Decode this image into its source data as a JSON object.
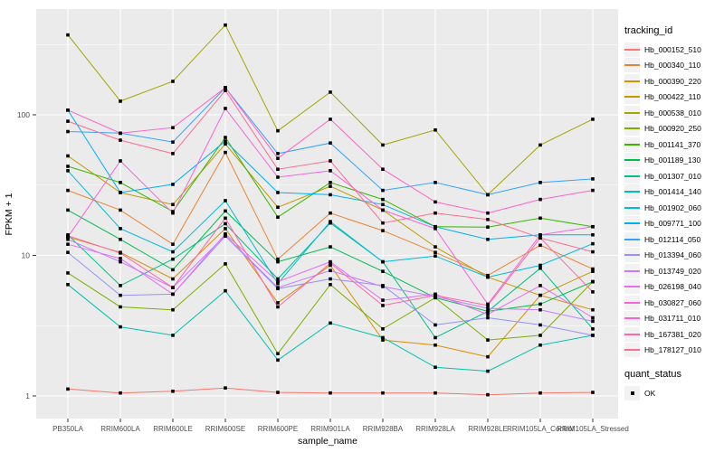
{
  "figure": {
    "panel_bg": "#EBEBEB",
    "grid_color": "#FFFFFF",
    "legend_key_bg": "#F2F2F2",
    "marker_color": "#000000",
    "axis_text_color": "#4D4D4D",
    "axis_title_color": "#000000"
  },
  "legend": {
    "tracking_title": "tracking_id",
    "quant_title": "quant_status",
    "quant_items": [
      {
        "label": "OK",
        "marker": "black-square"
      }
    ]
  },
  "chart_data": {
    "type": "line",
    "title": "",
    "xlabel": "sample_name",
    "ylabel": "FPKM + 1",
    "y_scale": "log10",
    "ylim": [
      0.69,
      563
    ],
    "y_ticks": [
      1,
      10,
      100
    ],
    "y_minor_ticks": [
      3.162,
      31.62,
      316.2
    ],
    "grid": true,
    "legend_position": "right",
    "marker": "square",
    "categories": [
      "PB350LA",
      "RRIM600LA",
      "RRIM600LE",
      "RRIM600SE",
      "RRIM600PE",
      "RRIM901LA",
      "RRIM928BA",
      "RRIM928LA",
      "RRIM928LE",
      "RRIM105LA_Control",
      "RRIM105LA_Stressed"
    ],
    "series": [
      {
        "name": "Hb_000152_510",
        "color": "#F8766D",
        "values": [
          1.12,
          1.05,
          1.08,
          1.14,
          1.06,
          1.05,
          1.05,
          1.05,
          1.02,
          1.05,
          1.06
        ]
      },
      {
        "name": "Hb_000340_110",
        "color": "#EA8331",
        "values": [
          29,
          21,
          12,
          54,
          9.4,
          20,
          15,
          10.5,
          7.2,
          11.8,
          8
        ]
      },
      {
        "name": "Hb_000390_220",
        "color": "#D89000",
        "values": [
          13.5,
          10.5,
          6.8,
          15.5,
          4.6,
          8.5,
          2.5,
          2.3,
          1.9,
          5.2,
          4.1
        ]
      },
      {
        "name": "Hb_000422_110",
        "color": "#C09B00",
        "values": [
          51,
          28,
          23,
          62,
          22,
          31,
          21,
          11.5,
          7,
          5.2,
          7.7
        ]
      },
      {
        "name": "Hb_000538_010",
        "color": "#A3A500",
        "values": [
          370,
          125,
          173,
          435,
          77,
          145,
          61,
          78,
          27,
          61,
          93
        ]
      },
      {
        "name": "Hb_000920_250",
        "color": "#7CAE00",
        "values": [
          7.5,
          4.3,
          4.1,
          8.7,
          2,
          6.2,
          3,
          5,
          2.5,
          2.7,
          6.5
        ]
      },
      {
        "name": "Hb_001141_370",
        "color": "#39B600",
        "values": [
          43,
          33,
          20.5,
          69,
          18.7,
          33,
          25,
          16,
          15.9,
          18.4,
          16
        ]
      },
      {
        "name": "Hb_001189_130",
        "color": "#00BB4E",
        "values": [
          21,
          13,
          7.9,
          20.7,
          9,
          11.5,
          7.7,
          5,
          4,
          4.5,
          6.5
        ]
      },
      {
        "name": "Hb_001307_010",
        "color": "#00C087",
        "values": [
          14,
          6.1,
          9.4,
          16.8,
          6.8,
          17,
          9,
          2.6,
          4,
          8.1,
          3
        ]
      },
      {
        "name": "Hb_001414_140",
        "color": "#00C0AF",
        "values": [
          6.2,
          3.1,
          2.7,
          5.6,
          1.8,
          3.3,
          2.6,
          1.6,
          1.5,
          2.3,
          2.7
        ]
      },
      {
        "name": "Hb_001902_060",
        "color": "#00BCD8",
        "values": [
          40,
          15.5,
          10.6,
          24.5,
          6.3,
          17.4,
          9,
          9.9,
          7,
          8.5,
          12.1
        ]
      },
      {
        "name": "Hb_009771_100",
        "color": "#00B0F6",
        "values": [
          108,
          28,
          32,
          65,
          28,
          27,
          23,
          16,
          13,
          14,
          14
        ]
      },
      {
        "name": "Hb_012114_050",
        "color": "#35A2FF",
        "values": [
          76,
          74,
          64,
          156,
          53,
          63,
          29,
          33,
          27,
          33,
          35
        ]
      },
      {
        "name": "Hb_013394_060",
        "color": "#9590FF",
        "values": [
          10.5,
          5.2,
          5.3,
          13.7,
          5.8,
          6.8,
          6.1,
          3.2,
          3.6,
          3.2,
          2.7
        ]
      },
      {
        "name": "Hb_013749_020",
        "color": "#C77CFF",
        "values": [
          13,
          9,
          5.9,
          13.9,
          5.9,
          7.8,
          6,
          5.1,
          4.2,
          4.1,
          3.4
        ]
      },
      {
        "name": "Hb_026198_040",
        "color": "#E76BF3",
        "values": [
          12,
          9.5,
          5.3,
          14.2,
          6.5,
          9,
          4.8,
          5.3,
          3.8,
          6.1,
          3.6
        ]
      },
      {
        "name": "Hb_030827_060",
        "color": "#FA62DB",
        "values": [
          13.5,
          47,
          20,
          111,
          36,
          40,
          21,
          15.5,
          4.5,
          14,
          16
        ]
      },
      {
        "name": "Hb_031711_010",
        "color": "#FF61C9",
        "values": [
          108,
          74,
          81,
          156,
          49,
          93,
          41,
          24,
          20,
          25,
          29
        ]
      },
      {
        "name": "Hb_167381_020",
        "color": "#FF67A4",
        "values": [
          13.8,
          10.4,
          5.9,
          18.4,
          4.3,
          8.8,
          4.4,
          5.2,
          4.4,
          13.3,
          5.5
        ]
      },
      {
        "name": "Hb_178127_010",
        "color": "#FF6C91",
        "values": [
          90,
          66,
          53,
          149,
          41,
          47,
          17,
          20,
          18,
          13.3,
          10.6
        ]
      }
    ]
  }
}
